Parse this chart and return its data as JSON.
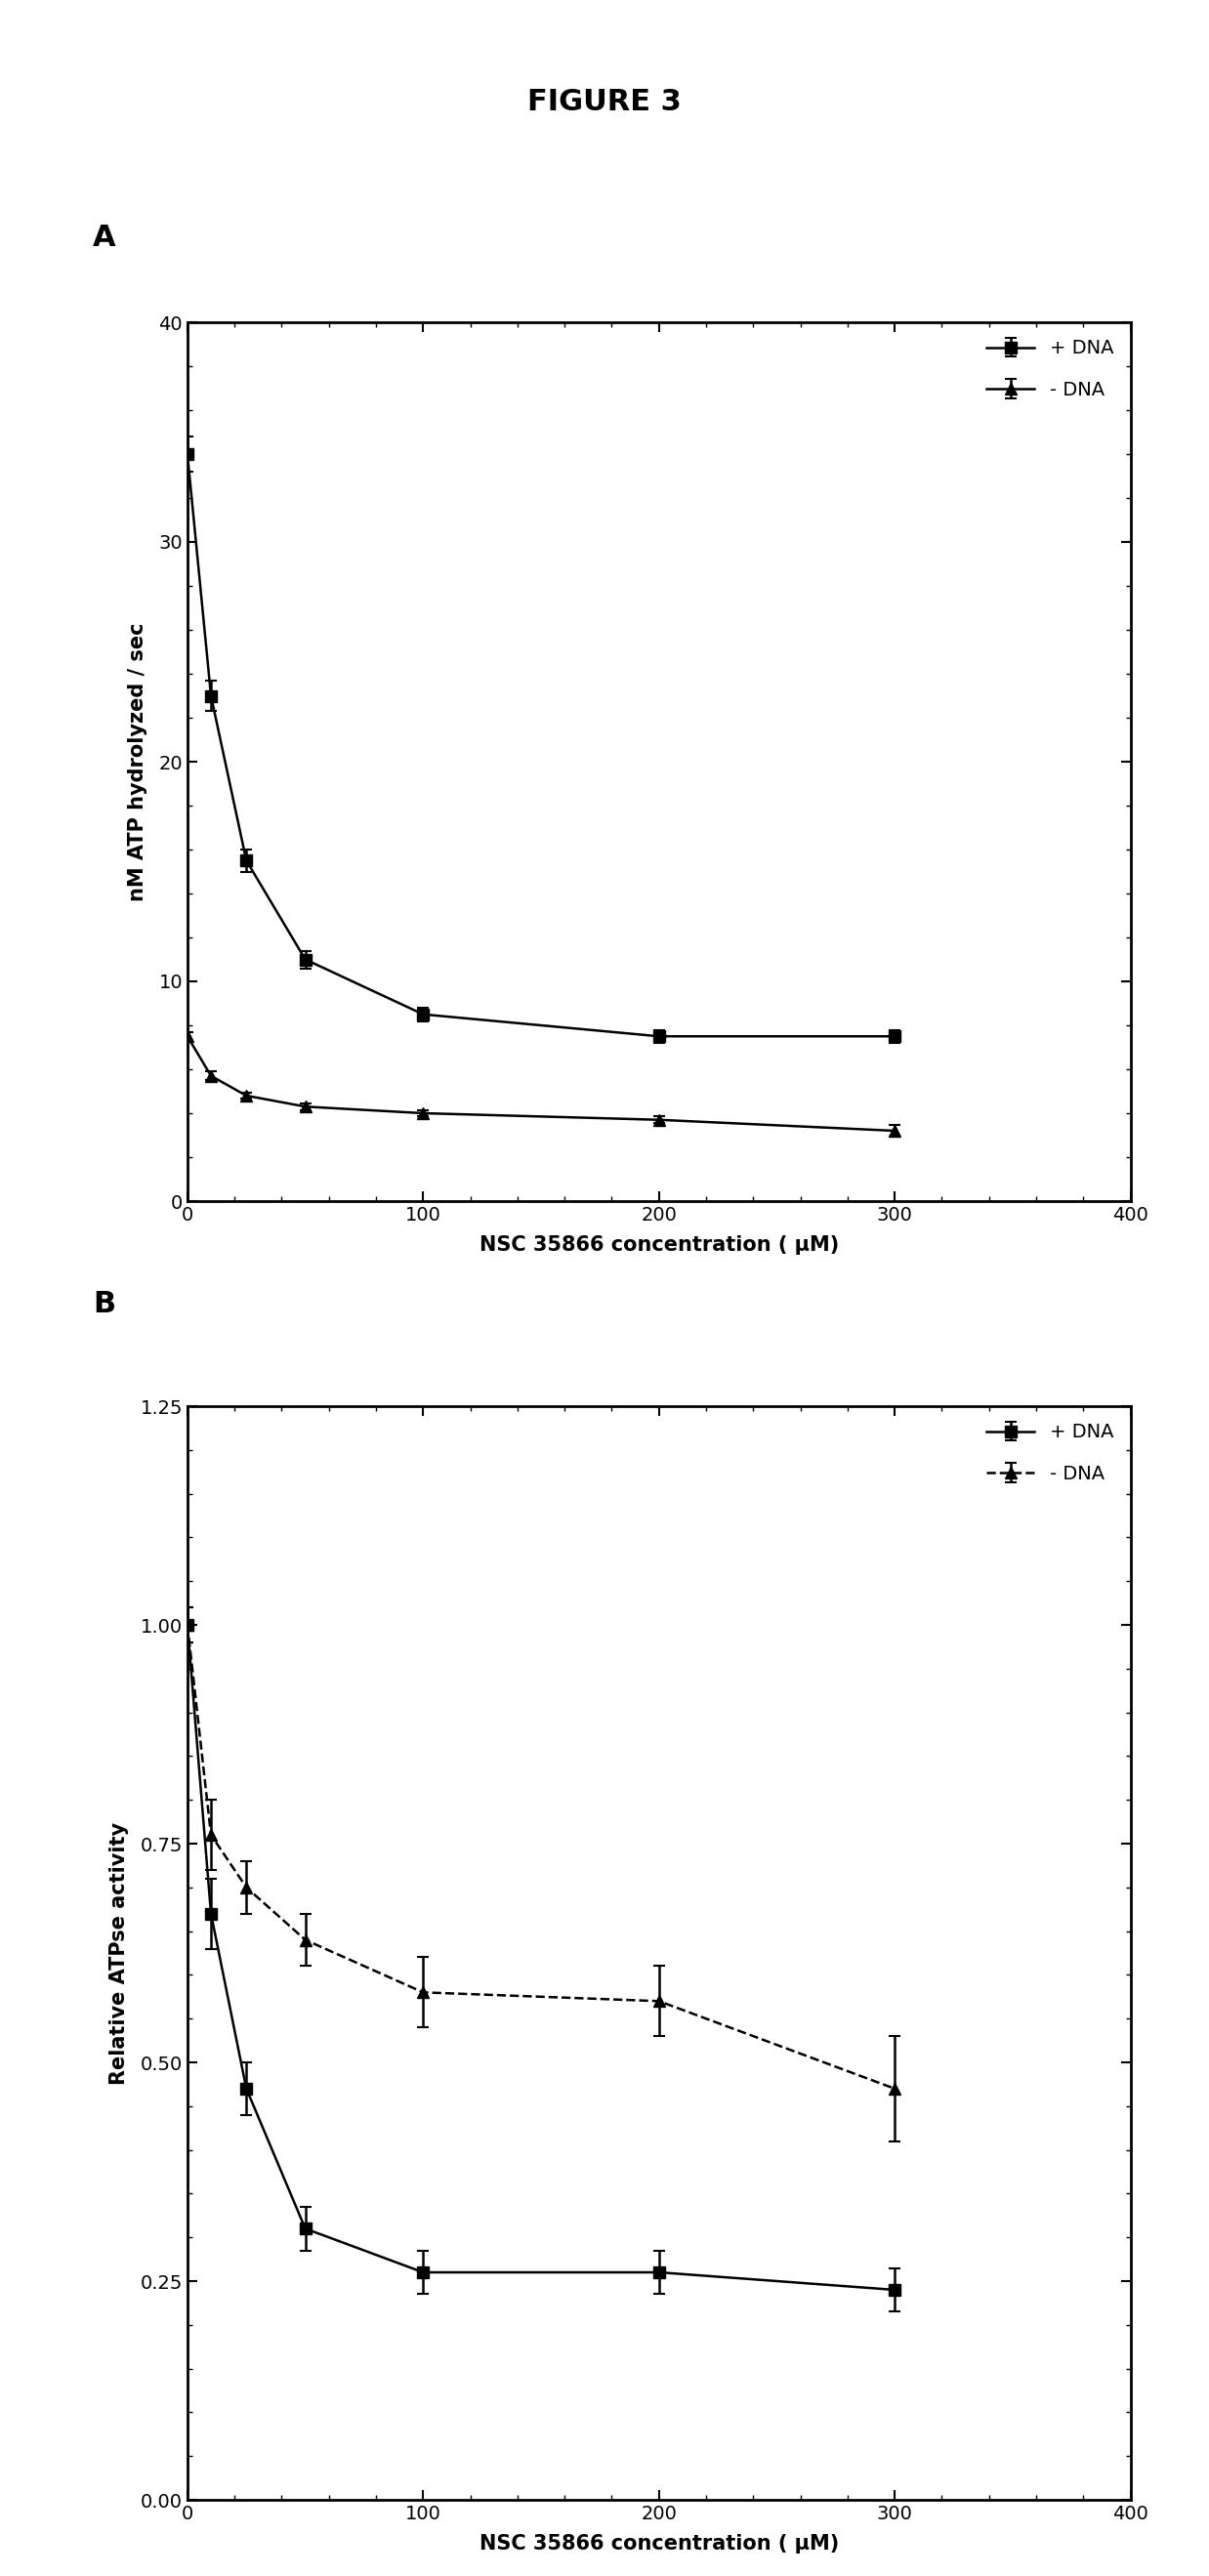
{
  "title": "FIGURE 3",
  "panel_A": {
    "label": "A",
    "xlabel": "NSC 35866 concentration ( μM)",
    "ylabel": "nM ATP hydrolyzed / sec",
    "xlim": [
      0,
      400
    ],
    "ylim": [
      0,
      40
    ],
    "xticks": [
      0,
      100,
      200,
      300,
      400
    ],
    "yticks": [
      0,
      10,
      20,
      30,
      40
    ],
    "plus_dna": {
      "x": [
        0,
        10,
        25,
        50,
        100,
        200,
        300
      ],
      "y": [
        34.0,
        23.0,
        15.5,
        11.0,
        8.5,
        7.5,
        7.5
      ],
      "yerr": [
        0.8,
        0.7,
        0.5,
        0.4,
        0.3,
        0.3,
        0.3
      ],
      "label": "+ DNA",
      "marker": "s",
      "linestyle": "-"
    },
    "minus_dna": {
      "x": [
        0,
        10,
        25,
        50,
        100,
        200,
        300
      ],
      "y": [
        7.5,
        5.7,
        4.8,
        4.3,
        4.0,
        3.7,
        3.2
      ],
      "yerr": [
        0.2,
        0.2,
        0.15,
        0.15,
        0.15,
        0.15,
        0.25
      ],
      "label": "- DNA",
      "marker": "^",
      "linestyle": "-"
    }
  },
  "panel_B": {
    "label": "B",
    "xlabel": "NSC 35866 concentration ( μM)",
    "ylabel": "Relative ATPse activity",
    "xlim": [
      0,
      400
    ],
    "ylim": [
      0.0,
      1.25
    ],
    "xticks": [
      0,
      100,
      200,
      300,
      400
    ],
    "yticks": [
      0.0,
      0.25,
      0.5,
      0.75,
      1.0,
      1.25
    ],
    "plus_dna": {
      "x": [
        0,
        10,
        25,
        50,
        100,
        200,
        300
      ],
      "y": [
        1.0,
        0.67,
        0.47,
        0.31,
        0.26,
        0.26,
        0.24
      ],
      "yerr": [
        0.02,
        0.04,
        0.03,
        0.025,
        0.025,
        0.025,
        0.025
      ],
      "label": "+ DNA",
      "marker": "s",
      "linestyle": "-"
    },
    "minus_dna": {
      "x": [
        0,
        10,
        25,
        50,
        100,
        200,
        300
      ],
      "y": [
        1.0,
        0.76,
        0.7,
        0.64,
        0.58,
        0.57,
        0.47
      ],
      "yerr": [
        0.02,
        0.04,
        0.03,
        0.03,
        0.04,
        0.04,
        0.06
      ],
      "label": "- DNA",
      "marker": "^",
      "linestyle": "--"
    }
  },
  "fig_background": "#ffffff",
  "line_color": "#000000",
  "markersize": 9,
  "linewidth": 1.8,
  "capsize": 4,
  "title_fontsize": 22,
  "label_fontsize": 15,
  "tick_fontsize": 14,
  "legend_fontsize": 14,
  "panel_label_fontsize": 22
}
